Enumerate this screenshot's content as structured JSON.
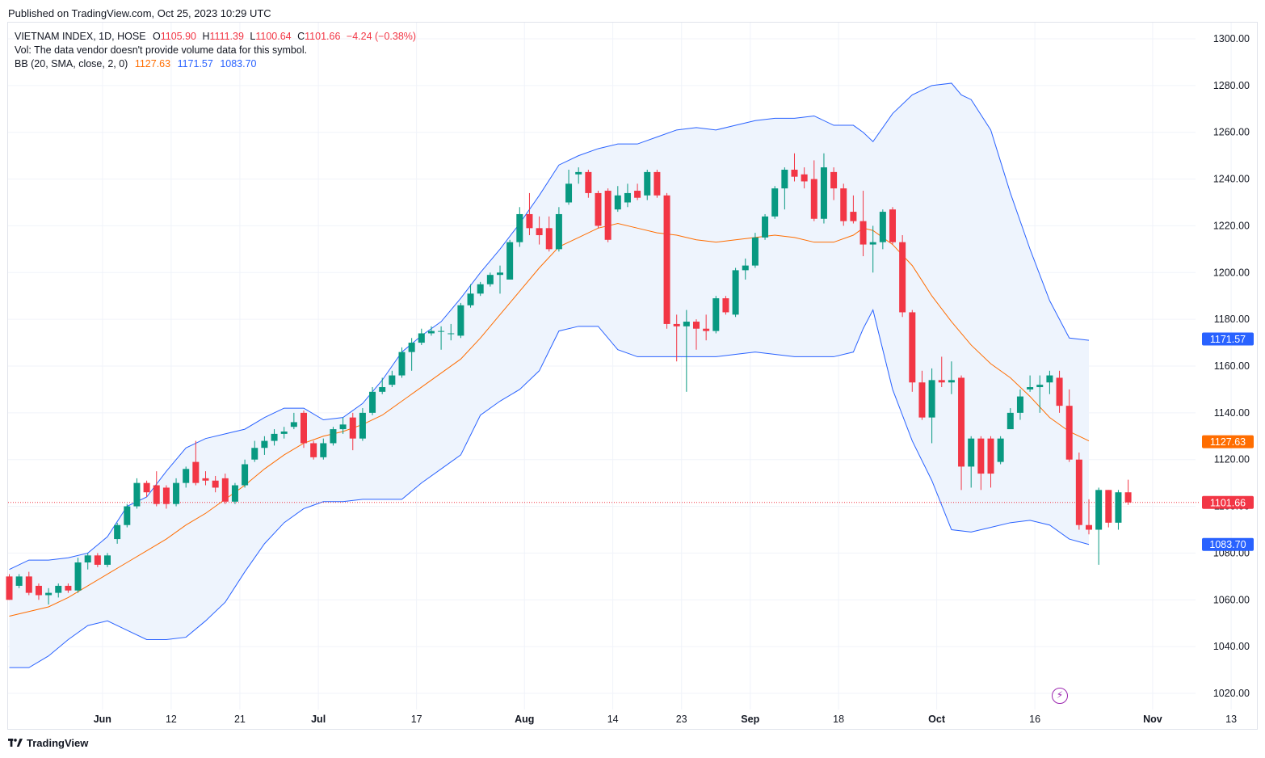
{
  "published": "Published on TradingView.com, Oct 25, 2023 10:29 UTC",
  "branding": "TradingView",
  "legend": {
    "symbol": "VIETNAM INDEX, 1D, HOSE",
    "o_label": "O",
    "o_value": "1105.90",
    "h_label": "H",
    "h_value": "1111.39",
    "l_label": "L",
    "l_value": "1100.64",
    "c_label": "C",
    "c_value": "1101.66",
    "change": "−4.24 (−0.38%)",
    "vol_line": "Vol: The data vendor doesn't provide volume data for this symbol.",
    "bb_label": "BB (20, SMA, close, 2, 0)",
    "bb_basis": "1127.63",
    "bb_upper": "1171.57",
    "bb_lower": "1083.70"
  },
  "colors": {
    "up": "#089981",
    "down": "#f23645",
    "basis": "#ff6d00",
    "band": "#2962ff",
    "band_fill": "#eef4fd",
    "grid": "#f0f3fa",
    "text": "#131722",
    "axis_text": "#131722"
  },
  "icons": [
    "tradingview-logo-icon",
    "lightning-icon"
  ],
  "chart_data": {
    "type": "candlestick",
    "title": "VIETNAM INDEX, 1D, HOSE",
    "ylim": [
      1013,
      1310
    ],
    "y_ticks": [
      1020,
      1040,
      1060,
      1080,
      1100,
      1120,
      1140,
      1160,
      1180,
      1200,
      1220,
      1240,
      1260,
      1280,
      1300
    ],
    "y_tick_labels": [
      "1020.00",
      "1040.00",
      "1060.00",
      "1080.00",
      "1100.00",
      "1120.00",
      "1140.00",
      "1160.00",
      "1180.00",
      "1200.00",
      "1220.00",
      "1240.00",
      "1260.00",
      "1280.00",
      "1300.00"
    ],
    "x_ticks": [
      {
        "label": "Jun",
        "day": 9,
        "bold": true
      },
      {
        "label": "12",
        "day": 16,
        "bold": false
      },
      {
        "label": "21",
        "day": 23,
        "bold": false
      },
      {
        "label": "Jul",
        "day": 31,
        "bold": true
      },
      {
        "label": "17",
        "day": 41,
        "bold": false
      },
      {
        "label": "Aug",
        "day": 52,
        "bold": true
      },
      {
        "label": "14",
        "day": 61,
        "bold": false
      },
      {
        "label": "23",
        "day": 68,
        "bold": false
      },
      {
        "label": "Sep",
        "day": 75,
        "bold": true
      },
      {
        "label": "18",
        "day": 84,
        "bold": false
      },
      {
        "label": "Oct",
        "day": 94,
        "bold": true
      },
      {
        "label": "16",
        "day": 104,
        "bold": false
      },
      {
        "label": "Nov",
        "day": 116,
        "bold": true
      },
      {
        "label": "13",
        "day": 124,
        "bold": false
      }
    ],
    "price_line": 1101.66,
    "price_labels": [
      {
        "text": "1171.57",
        "value": 1171.57,
        "color": "#2962ff"
      },
      {
        "text": "1127.63",
        "value": 1127.63,
        "color": "#ff6d00"
      },
      {
        "text": "1101.66",
        "value": 1101.66,
        "color": "#f23645"
      },
      {
        "text": "1083.70",
        "value": 1083.7,
        "color": "#2962ff"
      }
    ],
    "candles": [
      [
        1070,
        1060,
        1071,
        1060
      ],
      [
        1066,
        1070,
        1071,
        1065
      ],
      [
        1070,
        1063,
        1072,
        1062
      ],
      [
        1066,
        1062,
        1067,
        1060
      ],
      [
        1062,
        1063,
        1065,
        1058
      ],
      [
        1063,
        1066,
        1067,
        1061
      ],
      [
        1066,
        1064,
        1067,
        1063
      ],
      [
        1064,
        1076,
        1078,
        1063
      ],
      [
        1076,
        1079,
        1080,
        1073
      ],
      [
        1079,
        1075,
        1080,
        1074
      ],
      [
        1075,
        1079,
        1080,
        1074
      ],
      [
        1086,
        1092,
        1093,
        1084
      ],
      [
        1092,
        1100,
        1101,
        1091
      ],
      [
        1100,
        1110,
        1112,
        1099
      ],
      [
        1110,
        1106,
        1111,
        1104
      ],
      [
        1109,
        1101,
        1115,
        1100
      ],
      [
        1108,
        1101,
        1109,
        1099
      ],
      [
        1101,
        1110,
        1112,
        1100
      ],
      [
        1110,
        1116,
        1117,
        1108
      ],
      [
        1119,
        1110,
        1128,
        1109
      ],
      [
        1112,
        1111,
        1115,
        1109
      ],
      [
        1111,
        1108,
        1113,
        1106
      ],
      [
        1112,
        1102,
        1114,
        1101
      ],
      [
        1102,
        1109,
        1110,
        1101
      ],
      [
        1109,
        1118,
        1120,
        1108
      ],
      [
        1120,
        1125,
        1128,
        1119
      ],
      [
        1125,
        1128,
        1130,
        1122
      ],
      [
        1128,
        1131,
        1133,
        1126
      ],
      [
        1131,
        1132,
        1134,
        1129
      ],
      [
        1134,
        1136,
        1140,
        1133
      ],
      [
        1140,
        1127,
        1141,
        1125
      ],
      [
        1127,
        1121,
        1128,
        1120
      ],
      [
        1121,
        1127,
        1129,
        1120
      ],
      [
        1127,
        1133,
        1134,
        1126
      ],
      [
        1133,
        1135,
        1138,
        1131
      ],
      [
        1138,
        1129,
        1140,
        1124
      ],
      [
        1129,
        1140,
        1142,
        1128
      ],
      [
        1140,
        1149,
        1151,
        1139
      ],
      [
        1149,
        1151,
        1155,
        1148
      ],
      [
        1152,
        1156,
        1158,
        1151
      ],
      [
        1156,
        1166,
        1168,
        1155
      ],
      [
        1166,
        1170,
        1172,
        1158
      ],
      [
        1170,
        1174,
        1176,
        1169
      ],
      [
        1174,
        1175,
        1177,
        1173
      ],
      [
        1175,
        1175,
        1177,
        1167
      ],
      [
        1174,
        1174,
        1178,
        1171
      ],
      [
        1173,
        1186,
        1187,
        1172
      ],
      [
        1186,
        1191,
        1195,
        1185
      ],
      [
        1191,
        1195,
        1196,
        1190
      ],
      [
        1195,
        1199,
        1200,
        1194
      ],
      [
        1199,
        1200,
        1203,
        1191
      ],
      [
        1197,
        1213,
        1214,
        1197
      ],
      [
        1213,
        1225,
        1228,
        1211
      ],
      [
        1225,
        1219,
        1234,
        1216
      ],
      [
        1219,
        1216,
        1224,
        1212
      ],
      [
        1219,
        1210,
        1224,
        1209
      ],
      [
        1210,
        1225,
        1228,
        1209
      ],
      [
        1230,
        1238,
        1244,
        1229
      ],
      [
        1242,
        1243,
        1245,
        1238
      ],
      [
        1243,
        1234,
        1244,
        1232
      ],
      [
        1234,
        1220,
        1235,
        1219
      ],
      [
        1235,
        1214,
        1236,
        1213
      ],
      [
        1227,
        1233,
        1237,
        1226
      ],
      [
        1230,
        1234,
        1238,
        1228
      ],
      [
        1235,
        1232,
        1238,
        1231
      ],
      [
        1233,
        1243,
        1244,
        1231
      ],
      [
        1243,
        1233,
        1244,
        1232
      ],
      [
        1233,
        1178,
        1234,
        1176
      ],
      [
        1178,
        1177,
        1182,
        1162
      ],
      [
        1177,
        1179,
        1184,
        1149
      ],
      [
        1179,
        1176,
        1180,
        1167
      ],
      [
        1176,
        1175,
        1182,
        1171
      ],
      [
        1175,
        1189,
        1190,
        1174
      ],
      [
        1189,
        1183,
        1190,
        1182
      ],
      [
        1182,
        1201,
        1202,
        1181
      ],
      [
        1201,
        1203,
        1206,
        1197
      ],
      [
        1203,
        1215,
        1217,
        1202
      ],
      [
        1215,
        1224,
        1225,
        1214
      ],
      [
        1224,
        1236,
        1237,
        1223
      ],
      [
        1236,
        1244,
        1245,
        1227
      ],
      [
        1244,
        1241,
        1251,
        1239
      ],
      [
        1242,
        1239,
        1245,
        1236
      ],
      [
        1240,
        1223,
        1248,
        1222
      ],
      [
        1223,
        1245,
        1251,
        1221
      ],
      [
        1243,
        1236,
        1245,
        1231
      ],
      [
        1236,
        1222,
        1238,
        1220
      ],
      [
        1226,
        1222,
        1233,
        1221
      ],
      [
        1222,
        1212,
        1235,
        1207
      ],
      [
        1212,
        1213,
        1220,
        1200
      ],
      [
        1213,
        1226,
        1227,
        1210
      ],
      [
        1227,
        1213,
        1228,
        1212
      ],
      [
        1213,
        1183,
        1216,
        1181
      ],
      [
        1183,
        1153,
        1184,
        1149
      ],
      [
        1153,
        1138,
        1158,
        1137
      ],
      [
        1138,
        1154,
        1159,
        1127
      ],
      [
        1154,
        1153,
        1164,
        1151
      ],
      [
        1153,
        1154,
        1162,
        1148
      ],
      [
        1155,
        1117,
        1156,
        1107
      ],
      [
        1117,
        1129,
        1130,
        1108
      ],
      [
        1129,
        1114,
        1130,
        1107
      ],
      [
        1129,
        1114,
        1130,
        1108
      ],
      [
        1119,
        1129,
        1130,
        1118
      ],
      [
        1133,
        1140,
        1142,
        1134
      ],
      [
        1140,
        1147,
        1150,
        1137
      ],
      [
        1150,
        1151,
        1156,
        1149
      ],
      [
        1151,
        1152,
        1156,
        1140
      ],
      [
        1153,
        1156,
        1158,
        1148
      ],
      [
        1155,
        1143,
        1158,
        1140
      ],
      [
        1143,
        1120,
        1150,
        1119
      ],
      [
        1120,
        1092,
        1123,
        1090
      ],
      [
        1092,
        1090,
        1103,
        1088
      ],
      [
        1090,
        1107,
        1108,
        1075
      ],
      [
        1107,
        1093,
        1107,
        1091
      ],
      [
        1093,
        1106,
        1107,
        1090
      ],
      [
        1106,
        1101.66,
        1111.39,
        1100.64
      ]
    ],
    "basis": [
      [
        0,
        1053
      ],
      [
        2,
        1055
      ],
      [
        4,
        1057
      ],
      [
        6,
        1061
      ],
      [
        8,
        1066
      ],
      [
        10,
        1071
      ],
      [
        12,
        1076
      ],
      [
        14,
        1081
      ],
      [
        16,
        1086
      ],
      [
        18,
        1092
      ],
      [
        20,
        1097
      ],
      [
        22,
        1103
      ],
      [
        24,
        1109
      ],
      [
        26,
        1116
      ],
      [
        28,
        1122
      ],
      [
        30,
        1127
      ],
      [
        32,
        1130
      ],
      [
        34,
        1132
      ],
      [
        36,
        1135
      ],
      [
        38,
        1139
      ],
      [
        40,
        1145
      ],
      [
        42,
        1151
      ],
      [
        44,
        1157
      ],
      [
        46,
        1163
      ],
      [
        48,
        1172
      ],
      [
        50,
        1182
      ],
      [
        52,
        1192
      ],
      [
        54,
        1202
      ],
      [
        56,
        1211
      ],
      [
        58,
        1215
      ],
      [
        60,
        1219
      ],
      [
        62,
        1221
      ],
      [
        64,
        1219
      ],
      [
        66,
        1217
      ],
      [
        68,
        1216
      ],
      [
        70,
        1214
      ],
      [
        72,
        1213
      ],
      [
        74,
        1214
      ],
      [
        76,
        1215
      ],
      [
        78,
        1216
      ],
      [
        80,
        1215
      ],
      [
        82,
        1213
      ],
      [
        84,
        1213
      ],
      [
        86,
        1216
      ],
      [
        87,
        1219
      ],
      [
        88,
        1218
      ],
      [
        90,
        1212
      ],
      [
        92,
        1203
      ],
      [
        94,
        1190
      ],
      [
        96,
        1179
      ],
      [
        98,
        1169
      ],
      [
        100,
        1161
      ],
      [
        102,
        1155
      ],
      [
        104,
        1147
      ],
      [
        106,
        1138
      ],
      [
        108,
        1132
      ],
      [
        110,
        1128
      ]
    ],
    "upper": [
      [
        0,
        1073
      ],
      [
        2,
        1077
      ],
      [
        4,
        1077
      ],
      [
        6,
        1078
      ],
      [
        8,
        1080
      ],
      [
        10,
        1087
      ],
      [
        12,
        1100
      ],
      [
        14,
        1104
      ],
      [
        16,
        1115
      ],
      [
        18,
        1125
      ],
      [
        20,
        1129
      ],
      [
        22,
        1131
      ],
      [
        24,
        1133
      ],
      [
        26,
        1138
      ],
      [
        28,
        1142
      ],
      [
        30,
        1142
      ],
      [
        32,
        1137
      ],
      [
        34,
        1138
      ],
      [
        36,
        1144
      ],
      [
        38,
        1154
      ],
      [
        40,
        1166
      ],
      [
        42,
        1173
      ],
      [
        44,
        1179
      ],
      [
        46,
        1189
      ],
      [
        48,
        1200
      ],
      [
        50,
        1210
      ],
      [
        52,
        1221
      ],
      [
        54,
        1233
      ],
      [
        56,
        1246
      ],
      [
        58,
        1250
      ],
      [
        60,
        1253
      ],
      [
        62,
        1255
      ],
      [
        64,
        1255
      ],
      [
        66,
        1258
      ],
      [
        68,
        1261
      ],
      [
        70,
        1262
      ],
      [
        72,
        1261
      ],
      [
        74,
        1263
      ],
      [
        76,
        1265
      ],
      [
        78,
        1266
      ],
      [
        80,
        1266
      ],
      [
        82,
        1267
      ],
      [
        84,
        1263
      ],
      [
        86,
        1263
      ],
      [
        87,
        1260
      ],
      [
        88,
        1256
      ],
      [
        90,
        1268
      ],
      [
        92,
        1276
      ],
      [
        94,
        1280
      ],
      [
        96,
        1281
      ],
      [
        97,
        1276
      ],
      [
        98,
        1274
      ],
      [
        100,
        1261
      ],
      [
        102,
        1234
      ],
      [
        104,
        1210
      ],
      [
        106,
        1188
      ],
      [
        108,
        1172
      ],
      [
        110,
        1171
      ]
    ],
    "lower": [
      [
        0,
        1031
      ],
      [
        2,
        1031
      ],
      [
        4,
        1036
      ],
      [
        6,
        1043
      ],
      [
        8,
        1049
      ],
      [
        10,
        1051
      ],
      [
        12,
        1047
      ],
      [
        14,
        1043
      ],
      [
        16,
        1043
      ],
      [
        18,
        1044
      ],
      [
        20,
        1051
      ],
      [
        22,
        1059
      ],
      [
        24,
        1072
      ],
      [
        26,
        1084
      ],
      [
        28,
        1093
      ],
      [
        30,
        1099
      ],
      [
        32,
        1102
      ],
      [
        34,
        1102
      ],
      [
        36,
        1103
      ],
      [
        38,
        1103
      ],
      [
        40,
        1103
      ],
      [
        42,
        1110
      ],
      [
        44,
        1116
      ],
      [
        46,
        1122
      ],
      [
        48,
        1139
      ],
      [
        50,
        1145
      ],
      [
        52,
        1150
      ],
      [
        54,
        1158
      ],
      [
        56,
        1175
      ],
      [
        58,
        1177
      ],
      [
        60,
        1177
      ],
      [
        62,
        1167
      ],
      [
        64,
        1164
      ],
      [
        66,
        1164
      ],
      [
        68,
        1164
      ],
      [
        70,
        1164
      ],
      [
        72,
        1164
      ],
      [
        74,
        1165
      ],
      [
        76,
        1166
      ],
      [
        78,
        1165
      ],
      [
        80,
        1164
      ],
      [
        82,
        1164
      ],
      [
        84,
        1164
      ],
      [
        86,
        1166
      ],
      [
        87,
        1176
      ],
      [
        88,
        1184
      ],
      [
        90,
        1150
      ],
      [
        92,
        1128
      ],
      [
        94,
        1111
      ],
      [
        96,
        1090
      ],
      [
        98,
        1089
      ],
      [
        100,
        1091
      ],
      [
        102,
        1093
      ],
      [
        104,
        1094
      ],
      [
        106,
        1092
      ],
      [
        108,
        1086
      ],
      [
        110,
        1083.7
      ]
    ]
  }
}
